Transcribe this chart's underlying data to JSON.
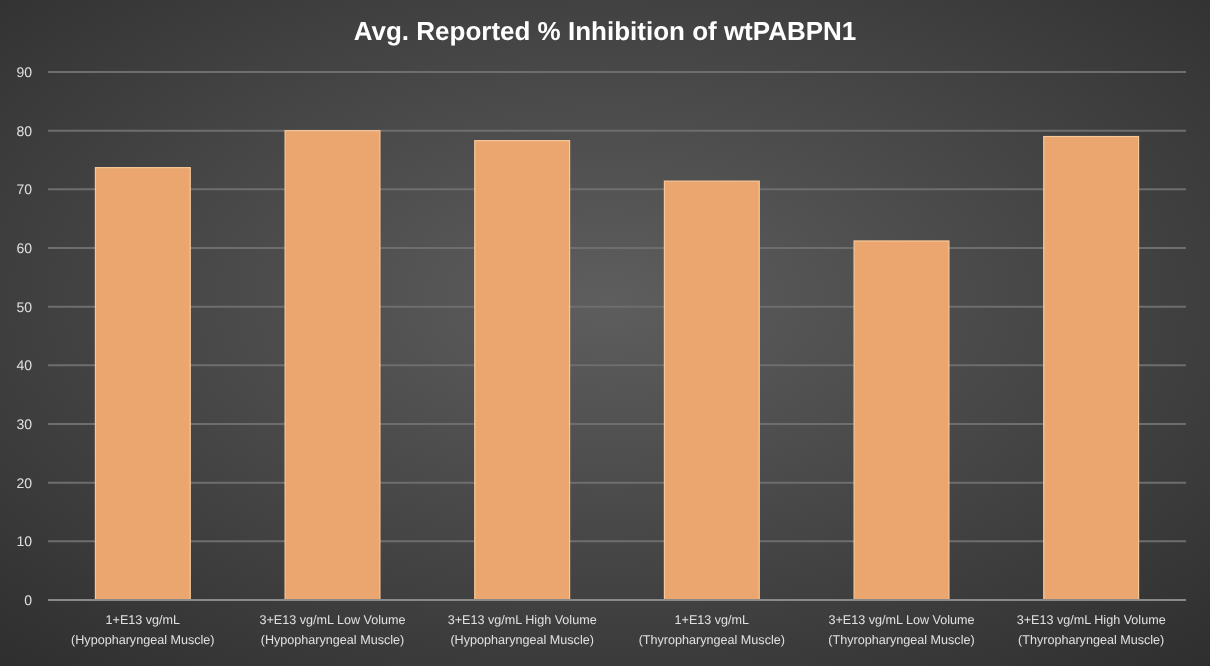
{
  "chart_data": {
    "type": "bar",
    "title": "Avg. Reported % Inhibition of wtPABPN1",
    "categories": [
      "1+E13 vg/mL\n(Hypopharyngeal Muscle)",
      "3+E13 vg/mL Low Volume\n(Hypopharyngeal Muscle)",
      "3+E13 vg/mL High Volume\n(Hypopharyngeal Muscle)",
      "1+E13 vg/mL\n(Thyropharyngeal Muscle)",
      "3+E13 vg/mL Low Volume\n(Thyropharyngeal Muscle)",
      "3+E13 vg/mL High Volume\n(Thyropharyngeal Muscle)"
    ],
    "values": [
      73.7,
      80,
      78.3,
      71.4,
      61.2,
      79
    ],
    "color": "#eaa66e",
    "ylim": [
      0,
      90
    ],
    "yticks": [
      0,
      10,
      20,
      30,
      40,
      50,
      60,
      70,
      80,
      90
    ],
    "grid": "y"
  }
}
